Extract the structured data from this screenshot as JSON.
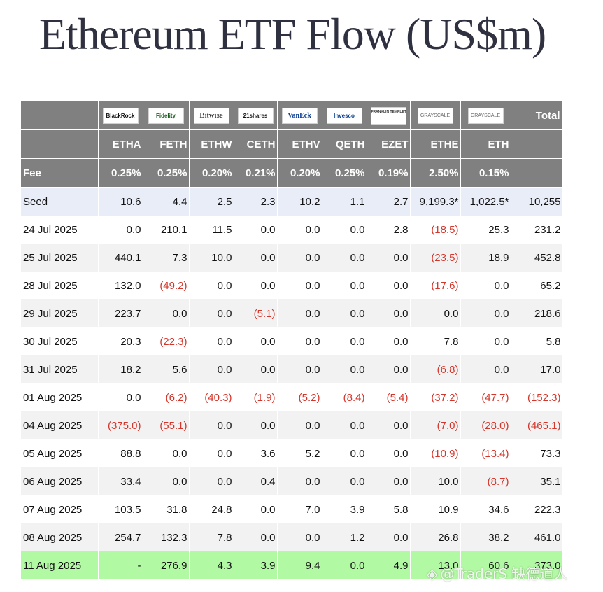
{
  "title": "Ethereum ETF Flow (US$m)",
  "header": {
    "issuers": [
      "BlackRock",
      "Fidelity",
      "Bitwise",
      "21shares",
      "VanEck",
      "Invesco",
      "FRANKLIN TEMPLETON",
      "GRAYSCALE",
      "GRAYSCALE"
    ],
    "total_label": "Total",
    "tickers": [
      "ETHA",
      "FETH",
      "ETHW",
      "CETH",
      "ETHV",
      "QETH",
      "EZET",
      "ETHE",
      "ETH"
    ],
    "fee_label": "Fee",
    "fees": [
      "0.25%",
      "0.25%",
      "0.20%",
      "0.21%",
      "0.20%",
      "0.25%",
      "0.19%",
      "2.50%",
      "0.15%"
    ]
  },
  "rows": [
    {
      "label": "Seed",
      "values": [
        "10.6",
        "4.4",
        "2.5",
        "2.3",
        "10.2",
        "1.1",
        "2.7",
        "9,199.3*",
        "1,022.5*",
        "10,255"
      ]
    },
    {
      "label": "24 Jul 2025",
      "values": [
        "0.0",
        "210.1",
        "11.5",
        "0.0",
        "0.0",
        "0.0",
        "2.8",
        "(18.5)",
        "25.3",
        "231.2"
      ]
    },
    {
      "label": "25 Jul 2025",
      "values": [
        "440.1",
        "7.3",
        "10.0",
        "0.0",
        "0.0",
        "0.0",
        "0.0",
        "(23.5)",
        "18.9",
        "452.8"
      ]
    },
    {
      "label": "28 Jul 2025",
      "values": [
        "132.0",
        "(49.2)",
        "0.0",
        "0.0",
        "0.0",
        "0.0",
        "0.0",
        "(17.6)",
        "0.0",
        "65.2"
      ]
    },
    {
      "label": "29 Jul 2025",
      "values": [
        "223.7",
        "0.0",
        "0.0",
        "(5.1)",
        "0.0",
        "0.0",
        "0.0",
        "0.0",
        "0.0",
        "218.6"
      ]
    },
    {
      "label": "30 Jul 2025",
      "values": [
        "20.3",
        "(22.3)",
        "0.0",
        "0.0",
        "0.0",
        "0.0",
        "0.0",
        "7.8",
        "0.0",
        "5.8"
      ]
    },
    {
      "label": "31 Jul 2025",
      "values": [
        "18.2",
        "5.6",
        "0.0",
        "0.0",
        "0.0",
        "0.0",
        "0.0",
        "(6.8)",
        "0.0",
        "17.0"
      ]
    },
    {
      "label": "01 Aug 2025",
      "values": [
        "0.0",
        "(6.2)",
        "(40.3)",
        "(1.9)",
        "(5.2)",
        "(8.4)",
        "(5.4)",
        "(37.2)",
        "(47.7)",
        "(152.3)"
      ]
    },
    {
      "label": "04 Aug 2025",
      "values": [
        "(375.0)",
        "(55.1)",
        "0.0",
        "0.0",
        "0.0",
        "0.0",
        "0.0",
        "(7.0)",
        "(28.0)",
        "(465.1)"
      ]
    },
    {
      "label": "05 Aug 2025",
      "values": [
        "88.8",
        "0.0",
        "0.0",
        "3.6",
        "5.2",
        "0.0",
        "0.0",
        "(10.9)",
        "(13.4)",
        "73.3"
      ]
    },
    {
      "label": "06 Aug 2025",
      "values": [
        "33.4",
        "0.0",
        "0.0",
        "0.4",
        "0.0",
        "0.0",
        "0.0",
        "10.0",
        "(8.7)",
        "35.1"
      ]
    },
    {
      "label": "07 Aug 2025",
      "values": [
        "103.5",
        "31.8",
        "24.8",
        "0.0",
        "7.0",
        "3.9",
        "5.8",
        "10.9",
        "34.6",
        "222.3"
      ]
    },
    {
      "label": "08 Aug 2025",
      "values": [
        "254.7",
        "132.3",
        "7.8",
        "0.0",
        "0.0",
        "1.2",
        "0.0",
        "26.8",
        "38.2",
        "461.0"
      ]
    },
    {
      "label": "11 Aug 2025",
      "values": [
        "-",
        "276.9",
        "4.3",
        "3.9",
        "9.4",
        "0.0",
        "4.9",
        "13.0",
        "60.6",
        "373.0"
      ]
    }
  ],
  "watermark": "@TraderS 缺德道人"
}
